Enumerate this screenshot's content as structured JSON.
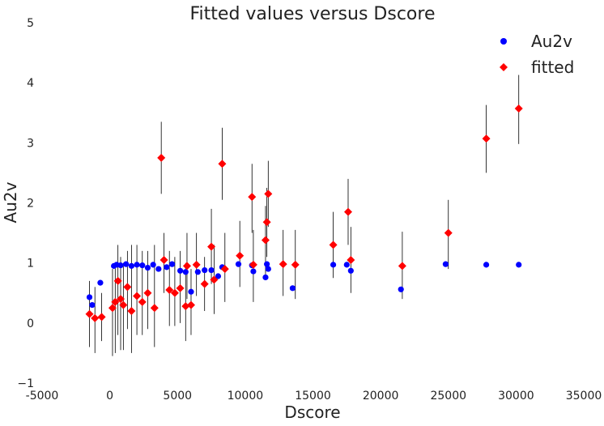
{
  "chart_data": {
    "type": "scatter",
    "title": "Fitted values versus Dscore",
    "xlabel": "Dscore",
    "ylabel": "Au2v",
    "xlim": [
      -5000,
      35000
    ],
    "ylim": [
      -1,
      5
    ],
    "xticks": [
      -5000,
      0,
      5000,
      10000,
      15000,
      20000,
      25000,
      30000,
      35000
    ],
    "yticks": [
      -1,
      0,
      1,
      2,
      3,
      4,
      5
    ],
    "grid": false,
    "legend_position": "top-right",
    "series": [
      {
        "name": "Au2v",
        "marker": "circle",
        "color": "#0000ff",
        "x": [
          -1500,
          -1300,
          -700,
          300,
          500,
          800,
          1200,
          1600,
          2000,
          2400,
          2800,
          3200,
          3600,
          4200,
          4600,
          5200,
          5600,
          6000,
          6500,
          7000,
          7500,
          8000,
          8300,
          9500,
          10500,
          10600,
          11500,
          11600,
          11700,
          13500,
          16500,
          17500,
          17800,
          21500,
          24800,
          27800,
          30200
        ],
        "y": [
          0.43,
          0.3,
          0.67,
          0.95,
          0.97,
          0.96,
          0.98,
          0.95,
          0.97,
          0.96,
          0.92,
          0.97,
          0.9,
          0.93,
          0.98,
          0.87,
          0.85,
          0.52,
          0.85,
          0.88,
          0.88,
          0.78,
          0.93,
          0.98,
          0.96,
          0.86,
          0.76,
          0.98,
          0.9,
          0.58,
          0.97,
          0.97,
          0.87,
          0.56,
          0.98,
          0.97,
          0.97
        ]
      },
      {
        "name": "fitted",
        "marker": "diamond",
        "color": "#ff0000",
        "x": [
          -1500,
          -1100,
          -600,
          200,
          400,
          600,
          800,
          1000,
          1300,
          1600,
          2000,
          2400,
          2800,
          3300,
          3800,
          4000,
          4400,
          4800,
          5200,
          5600,
          5700,
          6000,
          6400,
          7000,
          7500,
          7700,
          8300,
          8500,
          9600,
          10500,
          10600,
          11500,
          11600,
          11700,
          12800,
          13700,
          16500,
          17600,
          17800,
          21600,
          25000,
          27800,
          30200
        ],
        "y": [
          0.15,
          0.08,
          0.1,
          0.25,
          0.35,
          0.7,
          0.4,
          0.3,
          0.6,
          0.2,
          0.45,
          0.35,
          0.5,
          0.25,
          2.75,
          1.05,
          0.55,
          0.5,
          0.58,
          0.28,
          0.95,
          0.3,
          0.97,
          0.65,
          1.27,
          0.72,
          2.65,
          0.9,
          1.12,
          2.1,
          0.97,
          1.38,
          1.68,
          2.15,
          0.98,
          0.97,
          1.3,
          1.85,
          1.05,
          0.95,
          1.5,
          3.07,
          3.57
        ]
      }
    ],
    "error_bars": {
      "series": "fitted",
      "lower": [
        -0.4,
        -0.5,
        -0.3,
        -0.55,
        -0.5,
        -0.2,
        -0.45,
        -0.45,
        -0.1,
        -0.5,
        -0.2,
        -0.2,
        -0.1,
        -0.4,
        2.15,
        0.5,
        -0.05,
        -0.05,
        0.0,
        -0.3,
        0.4,
        -0.2,
        0.45,
        0.2,
        0.65,
        0.15,
        2.05,
        0.35,
        0.6,
        1.5,
        0.35,
        0.78,
        1.1,
        1.6,
        0.45,
        0.4,
        0.75,
        1.3,
        0.5,
        0.4,
        0.9,
        2.5,
        2.98
      ],
      "upper": [
        0.7,
        0.6,
        0.5,
        0.9,
        1.0,
        1.3,
        1.1,
        1.0,
        1.2,
        1.3,
        1.3,
        1.2,
        1.2,
        1.3,
        3.35,
        1.5,
        1.2,
        1.1,
        1.2,
        1.0,
        1.5,
        0.9,
        1.5,
        1.1,
        1.9,
        1.3,
        3.25,
        1.5,
        1.7,
        2.65,
        1.55,
        1.95,
        2.25,
        2.7,
        1.55,
        1.55,
        1.85,
        2.4,
        1.6,
        1.52,
        2.05,
        3.63,
        4.13
      ]
    }
  }
}
